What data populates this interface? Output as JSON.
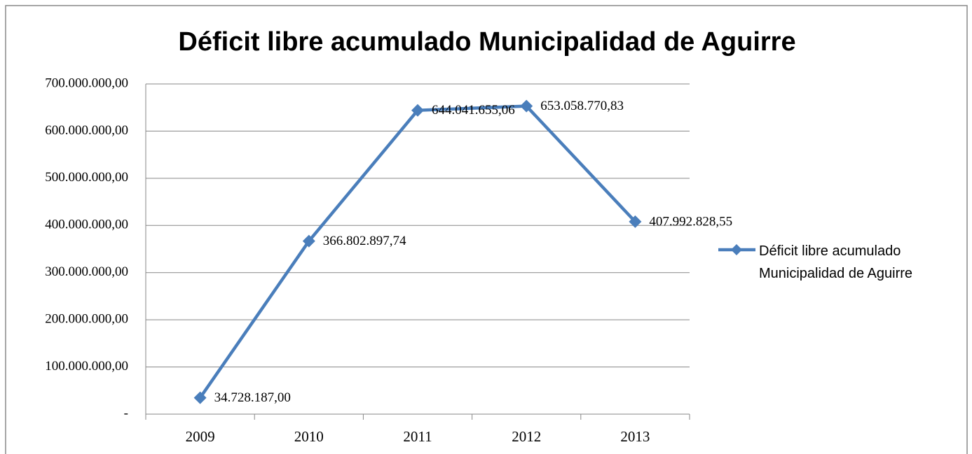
{
  "chart_data": {
    "type": "line",
    "title": "Déficit libre acumulado Municipalidad de Aguirre",
    "categories": [
      "2009",
      "2010",
      "2011",
      "2012",
      "2013"
    ],
    "series": [
      {
        "name": "Déficit libre acumulado Municipalidad de Aguirre",
        "color": "#4a7ebb",
        "values": [
          34728187,
          366802897.74,
          644041655.06,
          653058770.83,
          407992828.55
        ],
        "value_labels": [
          "34.728.187,00",
          "366.802.897,74",
          "644.041.655,06",
          "653.058.770,83",
          "407.992.828,55"
        ]
      }
    ],
    "ylim": [
      0,
      700000000
    ],
    "yticks": [
      {
        "value": 0,
        "label": "-"
      },
      {
        "value": 100000000,
        "label": "100.000.000,00"
      },
      {
        "value": 200000000,
        "label": "200.000.000,00"
      },
      {
        "value": 300000000,
        "label": "300.000.000,00"
      },
      {
        "value": 400000000,
        "label": "400.000.000,00"
      },
      {
        "value": 500000000,
        "label": "500.000.000,00"
      },
      {
        "value": 600000000,
        "label": "600.000.000,00"
      },
      {
        "value": 700000000,
        "label": "700.000.000,00"
      }
    ],
    "grid": true,
    "legend": "right"
  }
}
